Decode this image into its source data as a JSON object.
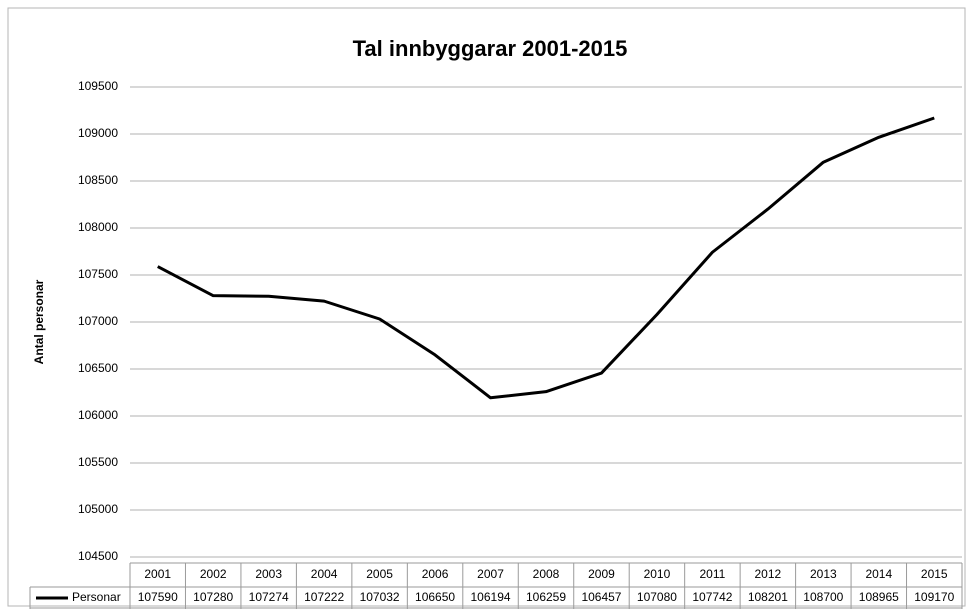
{
  "chart_data": {
    "type": "line",
    "title": "Tal innbyggarar 2001-2015",
    "y_label": "Antal personar",
    "categories": [
      "2001",
      "2002",
      "2003",
      "2004",
      "2005",
      "2006",
      "2007",
      "2008",
      "2009",
      "2010",
      "2011",
      "2012",
      "2013",
      "2014",
      "2015"
    ],
    "series": [
      {
        "name": "Personar",
        "color": "#000000",
        "values": [
          107590,
          107280,
          107274,
          107222,
          107032,
          106650,
          106194,
          106259,
          106457,
          107080,
          107742,
          108201,
          108700,
          108965,
          109170
        ]
      }
    ],
    "ylim": [
      104500,
      109500
    ],
    "yticks": [
      104500,
      105000,
      105500,
      106000,
      106500,
      107000,
      107500,
      108000,
      108500,
      109000,
      109500
    ],
    "grid": true
  }
}
